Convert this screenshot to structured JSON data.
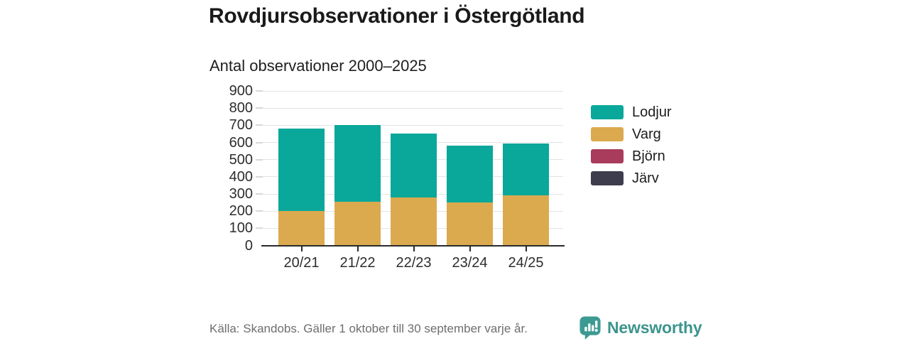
{
  "title": "Rovdjursobservationer i Östergötland",
  "subtitle": "Antal observationer 2000–2025",
  "footer": {
    "source": "Källa: Skandobs. Gäller 1 oktober till 30 september varje år.",
    "brand": "Newsworthy",
    "brand_icon": "newsworthy-speech-bubble-bar-chart",
    "brand_color": "#3c958d"
  },
  "colors": {
    "background": "#ffffff",
    "gridline": "#e3e3e3",
    "axis": "#2b2b2b",
    "tick_label": "#2d2d2d",
    "title_text": "#1a1a1a",
    "source_text": "#6e6e6e"
  },
  "chart_data": {
    "type": "bar",
    "stacked": true,
    "title": "Rovdjursobservationer i Östergötland",
    "subtitle": "Antal observationer 2000–2025",
    "categories": [
      "20/21",
      "21/22",
      "22/23",
      "23/24",
      "24/25"
    ],
    "series": [
      {
        "name": "Lodjur",
        "color": "#0aa79b",
        "values": [
          480,
          445,
          370,
          330,
          305
        ]
      },
      {
        "name": "Varg",
        "color": "#dbaa4f",
        "values": [
          200,
          255,
          280,
          250,
          290
        ]
      },
      {
        "name": "Björn",
        "color": "#a93b5d",
        "values": [
          0,
          0,
          0,
          0,
          0
        ]
      },
      {
        "name": "Järv",
        "color": "#3d3d4d",
        "values": [
          0,
          0,
          0,
          0,
          0
        ]
      }
    ],
    "totals": [
      680,
      700,
      650,
      580,
      595
    ],
    "xlabel": "",
    "ylabel": "",
    "ylim": [
      0,
      900
    ],
    "ytick_step": 100,
    "grid": true,
    "legend_position": "right"
  }
}
